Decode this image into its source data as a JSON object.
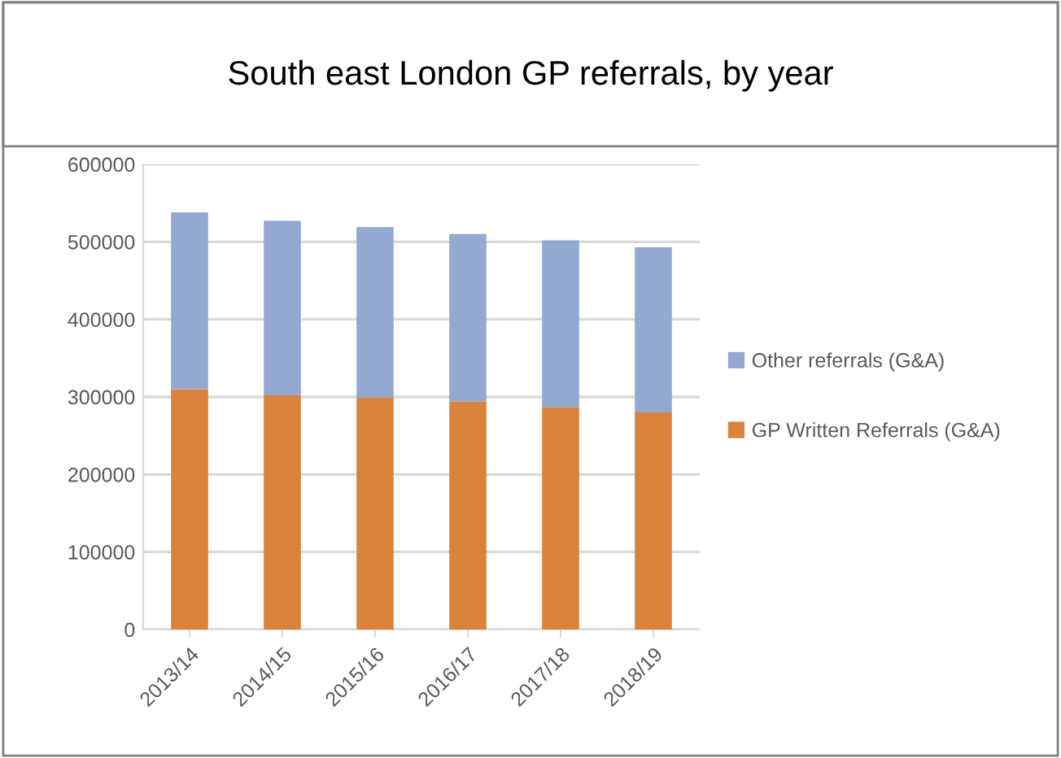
{
  "chart_data": {
    "type": "bar",
    "title": "South east London GP referrals, by year",
    "categories": [
      "2013/14",
      "2014/15",
      "2015/16",
      "2016/17",
      "2017/18",
      "2018/19"
    ],
    "series": [
      {
        "name": "GP Written Referrals (G&A)",
        "color": "#d9823b",
        "values": [
          310000,
          302000,
          299000,
          294000,
          287000,
          280000
        ]
      },
      {
        "name": "Other referrals (G&A)",
        "color": "#93a9d1",
        "values": [
          228000,
          225000,
          220000,
          216000,
          215000,
          213000
        ]
      }
    ],
    "stacked": true,
    "ylim": [
      0,
      600000
    ],
    "yticks": [
      0,
      100000,
      200000,
      300000,
      400000,
      500000,
      600000
    ],
    "grid": "y",
    "legend": "right"
  }
}
